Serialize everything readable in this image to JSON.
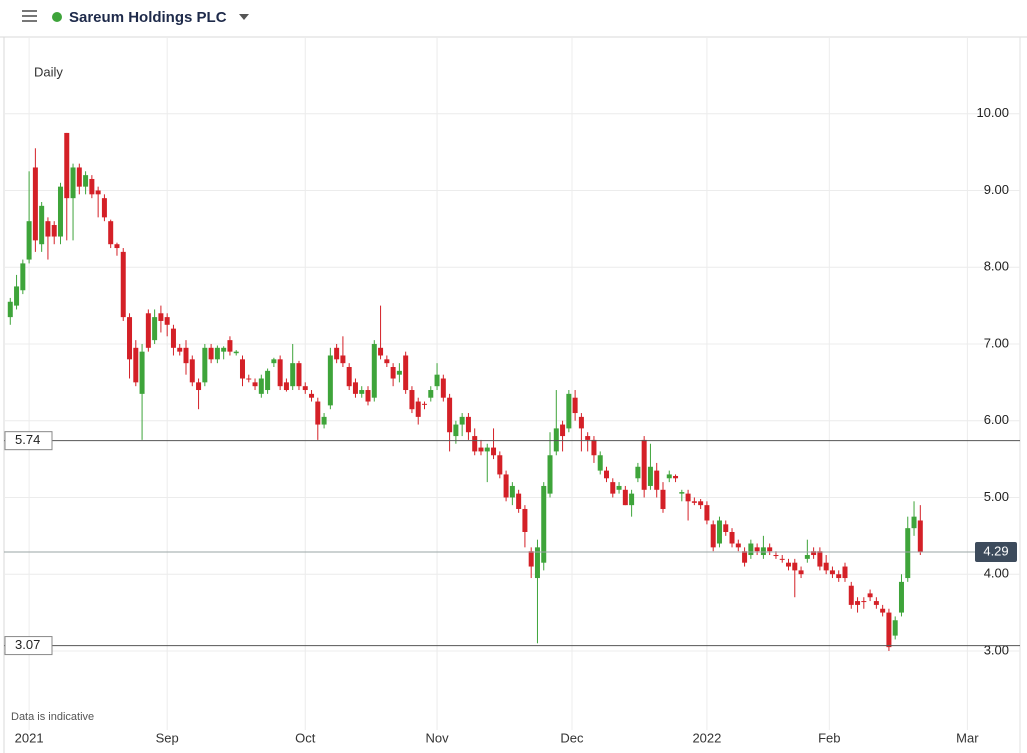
{
  "header": {
    "title": "Sareum Holdings PLC"
  },
  "chart_data": {
    "type": "candlestick",
    "interval": "Daily",
    "footnote": "Data is indicative",
    "categories": [
      null,
      null,
      null,
      null,
      null,
      null,
      null,
      null,
      null,
      null,
      null,
      null,
      null,
      null,
      null,
      null,
      null,
      null,
      null,
      null,
      null,
      null,
      null,
      null,
      null,
      null,
      null,
      null,
      null,
      null,
      null,
      null,
      null,
      null,
      null,
      null,
      null,
      null,
      null,
      null,
      null,
      null,
      null,
      null,
      null,
      null,
      null,
      null,
      null,
      null,
      null,
      null,
      null,
      null,
      null,
      null,
      null,
      null,
      null,
      null,
      null,
      null,
      null,
      null,
      null,
      null,
      null,
      null,
      null,
      null,
      null,
      null,
      null,
      null,
      null,
      null,
      null,
      null,
      null,
      null,
      null,
      null,
      null,
      null,
      null,
      null,
      null,
      null,
      null,
      null,
      null,
      null,
      null,
      null,
      null,
      null,
      null,
      null,
      null,
      null,
      null,
      null,
      null,
      null,
      null,
      null,
      null,
      null,
      null,
      null,
      null,
      null,
      null,
      null,
      null,
      null,
      null,
      null,
      null,
      null,
      null,
      null,
      null,
      null,
      null,
      null,
      null,
      null,
      null,
      null,
      null,
      null,
      null,
      null,
      null,
      null,
      null,
      null,
      null,
      null,
      null,
      null,
      null,
      null,
      null,
      null
    ],
    "open": [
      7.35,
      7.5,
      7.7,
      8.1,
      9.3,
      8.3,
      8.6,
      8.55,
      8.4,
      9.75,
      8.9,
      9.3,
      9.05,
      9.15,
      9.0,
      8.9,
      8.6,
      8.3,
      8.2,
      7.35,
      6.95,
      6.35,
      7.4,
      7.05,
      7.4,
      7.35,
      7.2,
      6.95,
      6.95,
      6.8,
      6.5,
      6.5,
      6.95,
      6.8,
      6.9,
      7.05,
      6.88,
      6.8,
      6.55,
      6.5,
      6.35,
      6.4,
      6.75,
      6.8,
      6.5,
      6.45,
      6.75,
      6.45,
      6.35,
      6.25,
      5.95,
      6.2,
      6.95,
      6.85,
      6.7,
      6.5,
      6.35,
      6.4,
      6.3,
      6.95,
      6.8,
      6.7,
      6.6,
      6.85,
      6.4,
      6.25,
      6.22,
      6.3,
      6.45,
      6.55,
      6.3,
      5.8,
      5.95,
      6.05,
      5.8,
      5.65,
      5.6,
      5.65,
      5.55,
      5.3,
      5.0,
      5.05,
      4.85,
      4.3,
      3.95,
      4.15,
      5.05,
      5.6,
      5.95,
      5.9,
      6.3,
      6.05,
      5.8,
      5.75,
      5.35,
      5.35,
      5.2,
      5.1,
      5.1,
      4.9,
      5.25,
      5.75,
      5.15,
      5.35,
      5.1,
      5.25,
      5.28,
      5.05,
      5.05,
      4.95,
      4.95,
      4.9,
      4.65,
      4.4,
      4.65,
      4.55,
      4.4,
      4.3,
      4.25,
      4.35,
      4.25,
      4.35,
      4.25,
      4.2,
      4.15,
      4.15,
      4.05,
      4.2,
      4.3,
      4.3,
      4.15,
      4.05,
      4.0,
      4.1,
      3.85,
      3.65,
      3.65,
      3.75,
      3.65,
      3.55,
      3.5,
      3.2,
      3.5,
      3.95,
      4.6,
      4.7
    ],
    "high": [
      7.6,
      7.9,
      8.1,
      9.25,
      9.55,
      8.85,
      8.65,
      8.6,
      9.1,
      9.75,
      9.35,
      9.35,
      9.25,
      9.2,
      9.05,
      8.95,
      8.62,
      8.32,
      8.25,
      7.4,
      7.05,
      7.0,
      7.45,
      7.45,
      7.5,
      7.4,
      7.25,
      7.0,
      7.05,
      6.85,
      6.55,
      7.0,
      7.0,
      6.98,
      6.97,
      7.1,
      6.92,
      6.85,
      6.6,
      6.55,
      6.6,
      6.68,
      6.82,
      6.85,
      6.55,
      7.0,
      6.78,
      6.5,
      6.4,
      6.3,
      6.1,
      6.95,
      7.0,
      7.1,
      6.75,
      6.55,
      6.45,
      6.45,
      7.05,
      7.5,
      6.85,
      6.75,
      6.75,
      6.9,
      6.45,
      6.3,
      6.25,
      6.45,
      6.75,
      6.6,
      6.35,
      6.0,
      6.1,
      6.1,
      5.9,
      5.75,
      5.7,
      5.9,
      5.6,
      5.35,
      5.2,
      5.1,
      4.9,
      4.35,
      4.45,
      5.2,
      5.85,
      6.4,
      6.0,
      6.4,
      6.4,
      6.1,
      5.85,
      5.8,
      5.6,
      5.4,
      5.25,
      5.2,
      5.15,
      5.1,
      5.45,
      5.8,
      5.7,
      5.45,
      5.2,
      5.35,
      5.3,
      5.1,
      5.1,
      5.0,
      4.98,
      4.95,
      4.7,
      4.75,
      4.7,
      4.6,
      4.45,
      4.35,
      4.45,
      4.4,
      4.5,
      4.4,
      4.3,
      4.25,
      4.2,
      4.2,
      4.1,
      4.45,
      4.35,
      4.35,
      4.25,
      4.1,
      4.05,
      4.15,
      3.9,
      3.7,
      3.7,
      3.8,
      3.7,
      3.6,
      3.55,
      3.45,
      4.0,
      4.75,
      4.95,
      4.9
    ],
    "low": [
      7.25,
      7.45,
      7.65,
      8.05,
      8.2,
      8.2,
      8.1,
      8.3,
      8.3,
      8.35,
      8.35,
      8.95,
      8.95,
      8.9,
      8.65,
      8.6,
      8.25,
      8.15,
      7.3,
      6.55,
      6.45,
      5.75,
      6.9,
      7.0,
      7.15,
      7.1,
      6.85,
      6.85,
      6.6,
      6.45,
      6.15,
      6.45,
      6.75,
      6.75,
      6.8,
      6.85,
      6.85,
      6.45,
      6.5,
      6.4,
      6.3,
      6.35,
      6.7,
      6.4,
      6.38,
      6.4,
      6.4,
      6.35,
      6.25,
      5.75,
      5.9,
      6.15,
      6.75,
      6.7,
      6.4,
      6.3,
      6.3,
      6.2,
      6.25,
      6.8,
      6.7,
      6.45,
      6.5,
      6.35,
      6.1,
      5.95,
      6.15,
      6.25,
      6.4,
      6.25,
      5.6,
      5.7,
      5.8,
      5.75,
      5.55,
      5.55,
      5.2,
      5.5,
      5.25,
      4.95,
      4.9,
      4.8,
      4.35,
      3.95,
      3.1,
      4.05,
      5.0,
      5.55,
      5.6,
      5.85,
      6.0,
      5.6,
      5.6,
      5.45,
      5.3,
      5.2,
      5.0,
      5.05,
      4.9,
      4.75,
      5.2,
      5.0,
      5.1,
      5.0,
      4.8,
      5.2,
      5.2,
      4.95,
      4.7,
      4.9,
      4.85,
      4.65,
      4.3,
      4.35,
      4.5,
      4.35,
      4.3,
      4.1,
      4.2,
      4.25,
      4.2,
      4.25,
      4.2,
      4.15,
      4.05,
      3.7,
      3.95,
      4.15,
      4.2,
      4.05,
      4.0,
      3.95,
      3.9,
      3.9,
      3.55,
      3.5,
      3.55,
      3.65,
      3.55,
      3.45,
      3.0,
      3.15,
      3.45,
      3.9,
      4.5,
      4.25
    ],
    "close": [
      7.55,
      7.75,
      8.05,
      8.6,
      8.35,
      8.8,
      8.4,
      8.4,
      9.05,
      8.9,
      9.3,
      9.05,
      9.2,
      8.95,
      8.95,
      8.65,
      8.3,
      8.25,
      7.35,
      6.8,
      6.5,
      6.9,
      6.95,
      7.35,
      7.3,
      7.25,
      6.95,
      6.9,
      6.75,
      6.5,
      6.4,
      6.95,
      6.8,
      6.95,
      6.95,
      6.9,
      6.9,
      6.55,
      6.55,
      6.45,
      6.55,
      6.65,
      6.8,
      6.45,
      6.4,
      6.75,
      6.45,
      6.4,
      6.3,
      5.95,
      6.05,
      6.85,
      6.8,
      6.75,
      6.45,
      6.35,
      6.4,
      6.25,
      7.0,
      6.85,
      6.75,
      6.55,
      6.65,
      6.4,
      6.15,
      6.05,
      6.22,
      6.4,
      6.6,
      6.3,
      5.85,
      5.95,
      6.05,
      5.85,
      5.6,
      5.6,
      5.65,
      5.55,
      5.3,
      5.0,
      5.15,
      4.85,
      4.55,
      4.1,
      4.35,
      5.15,
      5.55,
      5.9,
      5.8,
      6.35,
      6.1,
      5.9,
      5.75,
      5.55,
      5.55,
      5.25,
      5.05,
      5.15,
      4.9,
      5.05,
      5.4,
      5.1,
      5.4,
      5.1,
      4.85,
      5.3,
      5.25,
      5.07,
      4.95,
      4.93,
      4.9,
      4.7,
      4.35,
      4.7,
      4.55,
      4.4,
      4.35,
      4.15,
      4.4,
      4.3,
      4.35,
      4.3,
      4.25,
      4.2,
      4.1,
      4.05,
      4.0,
      4.25,
      4.25,
      4.1,
      4.05,
      4.0,
      3.95,
      3.95,
      3.6,
      3.6,
      3.65,
      3.7,
      3.6,
      3.5,
      3.05,
      3.4,
      3.9,
      4.6,
      4.75,
      4.29
    ],
    "up_color": "#3ea43a",
    "down_color": "#d42027",
    "xlim": [
      -1,
      162
    ],
    "xticks": [
      {
        "value": 3,
        "label": "2021"
      },
      {
        "value": 25,
        "label": "Sep"
      },
      {
        "value": 47,
        "label": "Oct"
      },
      {
        "value": 68,
        "label": "Nov"
      },
      {
        "value": 89.5,
        "label": "Dec"
      },
      {
        "value": 111,
        "label": "2022"
      },
      {
        "value": 130.5,
        "label": "Feb"
      },
      {
        "value": 152.5,
        "label": "Mar"
      }
    ],
    "ylim": [
      1.97,
      11.0
    ],
    "yticks": [
      {
        "value": 3,
        "label": "3.00"
      },
      {
        "value": 4,
        "label": "4.00"
      },
      {
        "value": 5,
        "label": "5.00"
      },
      {
        "value": 6,
        "label": "6.00"
      },
      {
        "value": 7,
        "label": "7.00"
      },
      {
        "value": 8,
        "label": "8.00"
      },
      {
        "value": 9,
        "label": "9.00"
      },
      {
        "value": 10,
        "label": "10.00"
      }
    ],
    "grid": true,
    "price_lines": [
      5.74,
      3.07
    ],
    "last_price": 4.29
  }
}
